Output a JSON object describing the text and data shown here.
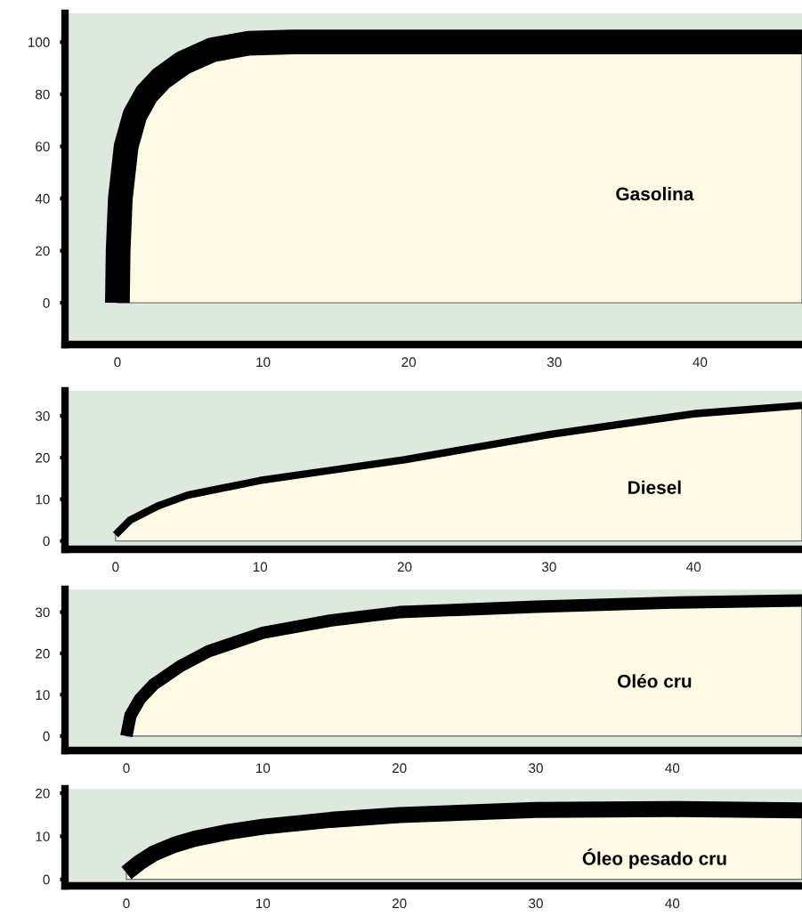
{
  "chart_data": [
    {
      "type": "area",
      "xlim": [
        -3.6,
        47
      ],
      "ylim": [
        -16,
        111
      ],
      "xticks": [
        0,
        10,
        20,
        30,
        40
      ],
      "yticks": [
        0,
        20,
        40,
        60,
        80,
        100
      ],
      "series": [
        {
          "name": "Gasolina",
          "color": "#000000",
          "x": [
            0,
            0.05,
            0.2,
            0.6,
            1.2,
            2,
            3,
            4.5,
            6.5,
            9,
            12,
            47
          ],
          "values": [
            0,
            20,
            40,
            60,
            72,
            80,
            86,
            92,
            97,
            99.5,
            100,
            100
          ]
        }
      ]
    },
    {
      "type": "area",
      "xlim": [
        -3.5,
        47.5
      ],
      "ylim": [
        -2,
        36
      ],
      "xticks": [
        0,
        10,
        20,
        30,
        40
      ],
      "yticks": [
        0,
        10,
        20,
        30
      ],
      "series": [
        {
          "name": "Diesel",
          "color": "#000000",
          "x": [
            0,
            1,
            3,
            5,
            10,
            15,
            20,
            25,
            30,
            35,
            40,
            47.5
          ],
          "values": [
            1.5,
            5,
            8.5,
            11,
            14.5,
            17,
            19.5,
            22.5,
            25.5,
            28,
            30.5,
            32.5
          ]
        }
      ]
    },
    {
      "type": "area",
      "xlim": [
        -4.5,
        49.5
      ],
      "ylim": [
        -3.5,
        35.5
      ],
      "xticks": [
        0,
        10,
        20,
        30,
        40
      ],
      "yticks": [
        0,
        10,
        20,
        30
      ],
      "series": [
        {
          "name": "Oléo cru",
          "color": "#000000",
          "x": [
            0,
            0.3,
            1,
            2,
            4,
            6,
            10,
            15,
            20,
            30,
            40,
            49.5
          ],
          "values": [
            0,
            5,
            9,
            12.5,
            17,
            20.5,
            25,
            28,
            30,
            31.3,
            32.3,
            32.8
          ]
        }
      ]
    },
    {
      "type": "area",
      "xlim": [
        -4.5,
        49.5
      ],
      "ylim": [
        -1.5,
        21
      ],
      "xticks": [
        0,
        10,
        20,
        30,
        40
      ],
      "yticks": [
        0,
        10,
        20
      ],
      "series": [
        {
          "name": "Óleo pesado cru",
          "color": "#000000",
          "x": [
            0,
            1,
            2,
            3.5,
            5,
            7.5,
            10,
            15,
            20,
            30,
            40,
            49.5
          ],
          "values": [
            1.5,
            4,
            6,
            8,
            9.4,
            11,
            12.2,
            13.8,
            14.9,
            16.1,
            16.3,
            16
          ]
        }
      ]
    }
  ]
}
